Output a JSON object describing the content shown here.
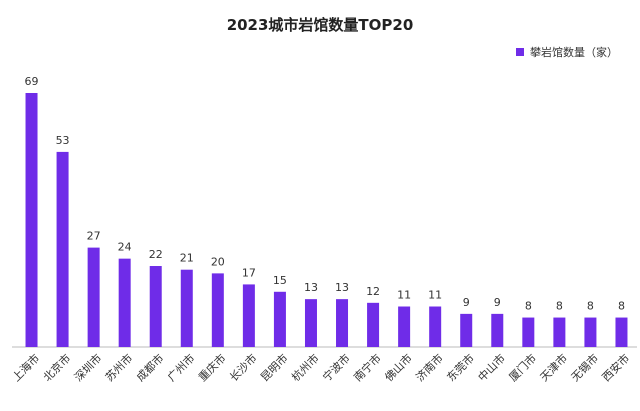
{
  "chart_data": {
    "type": "bar",
    "title": "2023城市岩馆数量TOP20",
    "xlabel": "",
    "ylabel": "",
    "ylim": [
      0,
      69
    ],
    "grid": false,
    "legend_position": "top-right",
    "colors": {
      "bar": "#6f2ce8",
      "axis": "#bbbbbb",
      "text": "#333333"
    },
    "categories": [
      "上海市",
      "北京市",
      "深圳市",
      "苏州市",
      "成都市",
      "广州市",
      "重庆市",
      "长沙市",
      "昆明市",
      "杭州市",
      "宁波市",
      "南宁市",
      "佛山市",
      "济南市",
      "东莞市",
      "中山市",
      "厦门市",
      "天津市",
      "无锡市",
      "西安市"
    ],
    "series": [
      {
        "name": "攀岩馆数量（家）",
        "values": [
          69,
          53,
          27,
          24,
          22,
          21,
          20,
          17,
          15,
          13,
          13,
          12,
          11,
          11,
          9,
          9,
          8,
          8,
          8,
          8
        ]
      }
    ]
  }
}
